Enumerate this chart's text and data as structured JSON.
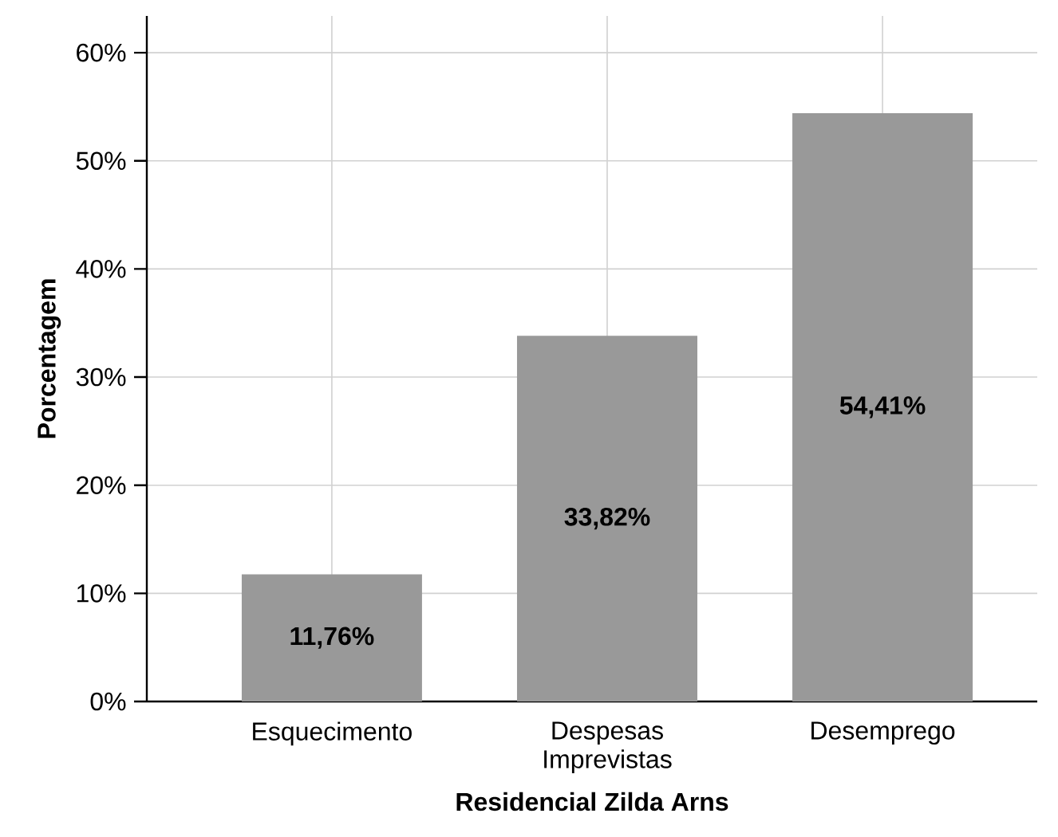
{
  "chart_data": {
    "type": "bar",
    "xlabel": "Residencial Zilda Arns",
    "ylabel": "Porcentagem",
    "categories": [
      "Esquecimento",
      "Despesas Imprevistas",
      "Desemprego"
    ],
    "values": [
      11.76,
      33.82,
      54.41
    ],
    "value_labels": [
      "11,76%",
      "33,82%",
      "54,41%"
    ],
    "color": "#999999",
    "ylim": [
      0,
      63.4
    ],
    "yticks": [
      {
        "value": 0,
        "label": "0%"
      },
      {
        "value": 10,
        "label": "10%"
      },
      {
        "value": 20,
        "label": "20%"
      },
      {
        "value": 30,
        "label": "30%"
      },
      {
        "value": 40,
        "label": "40%"
      },
      {
        "value": 50,
        "label": "50%"
      },
      {
        "value": 60,
        "label": "60%"
      }
    ],
    "grid": true
  }
}
